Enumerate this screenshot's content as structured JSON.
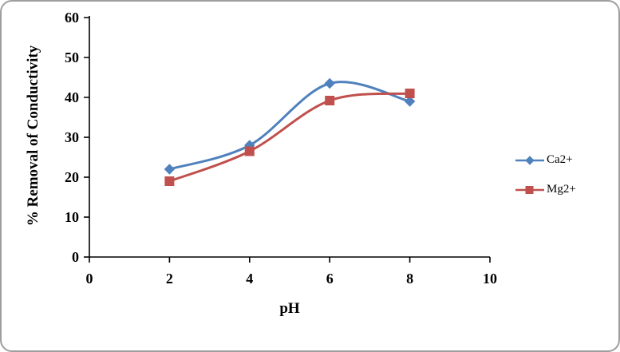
{
  "chart_data": {
    "type": "line",
    "x": [
      2,
      4,
      6,
      8
    ],
    "series": [
      {
        "name": "Ca2+",
        "values": [
          22,
          28,
          43.5,
          39
        ],
        "color": "#4F81BD",
        "marker": "diamond"
      },
      {
        "name": "Mg2+",
        "values": [
          19,
          26.5,
          39.2,
          41
        ],
        "color": "#C0504D",
        "marker": "square"
      }
    ],
    "title": "",
    "xlabel": "pH",
    "ylabel": "% Removal of Conductivity",
    "xlim": [
      0,
      10
    ],
    "ylim": [
      0,
      60
    ],
    "x_ticks": [
      0,
      2,
      4,
      6,
      8,
      10
    ],
    "y_ticks": [
      0,
      10,
      20,
      30,
      40,
      50,
      60
    ],
    "grid": false,
    "smooth": true,
    "legend_position": "right"
  }
}
